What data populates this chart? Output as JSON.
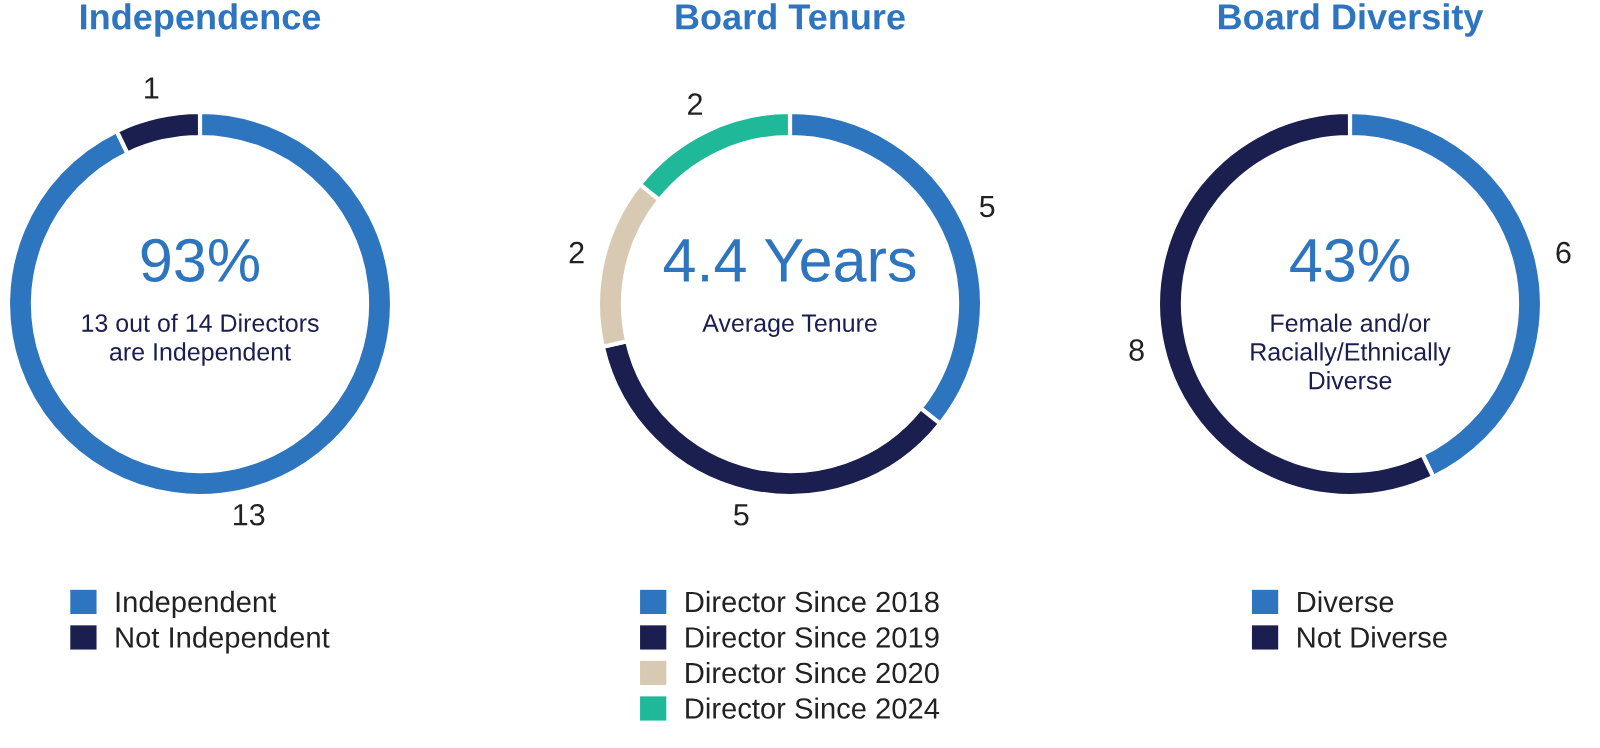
{
  "chart_data": [
    {
      "type": "donut",
      "title": "Independence",
      "categories": [
        "Independent",
        "Not Independent"
      ],
      "values": [
        13,
        1
      ],
      "colors": [
        "#2e75c0",
        "#1b1f4f"
      ],
      "data_labels": true,
      "legend": "bottom",
      "annotations": [
        "93%",
        "13 out of 14 Directors\nare Independent"
      ]
    },
    {
      "type": "donut",
      "title": "Board Tenure",
      "categories": [
        "Director Since 2018",
        "Director Since 2019",
        "Director Since 2020",
        "Director Since 2024"
      ],
      "values": [
        5,
        5,
        2,
        2
      ],
      "colors": [
        "#2e75c0",
        "#1b1f4f",
        "#d8c9b2",
        "#1fb99a"
      ],
      "data_labels": true,
      "legend": "bottom",
      "annotations": [
        "4.4 Years",
        "Average Tenure"
      ]
    },
    {
      "type": "donut",
      "title": "Board Diversity",
      "categories": [
        "Diverse",
        "Not Diverse"
      ],
      "values": [
        6,
        8
      ],
      "colors": [
        "#2e75c0",
        "#1b1f4f"
      ],
      "data_labels": true,
      "legend": "bottom",
      "annotations": [
        "43%",
        "Female and/or\nRacially/Ethnically\nDiverse"
      ]
    }
  ]
}
